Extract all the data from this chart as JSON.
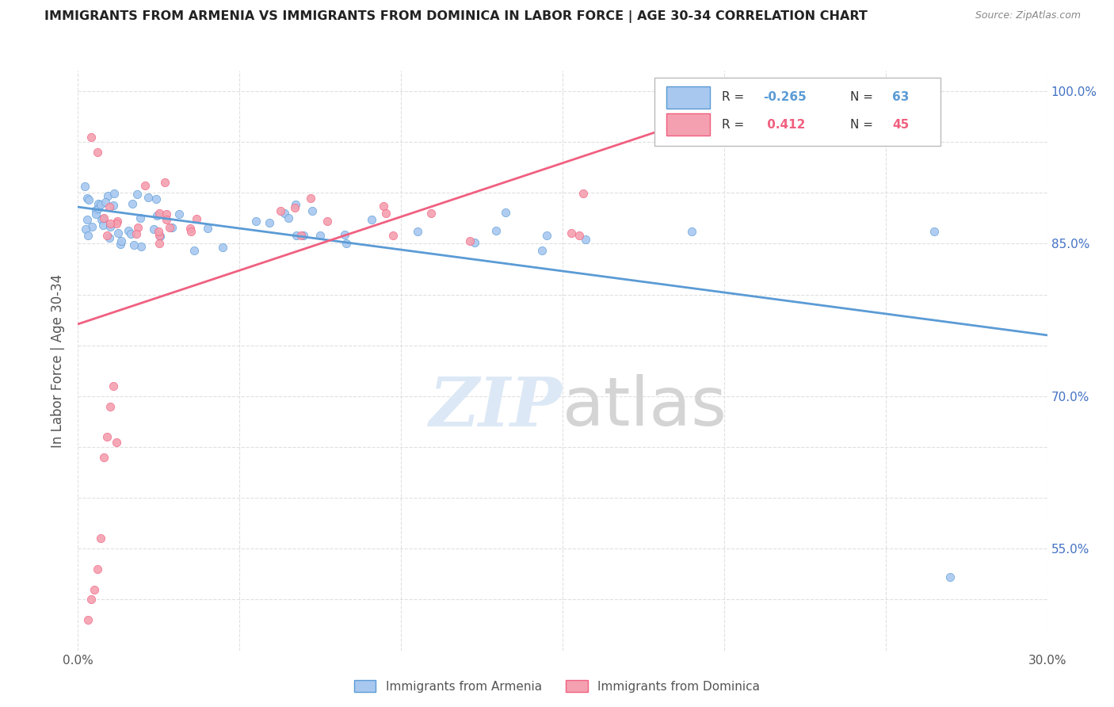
{
  "title": "IMMIGRANTS FROM ARMENIA VS IMMIGRANTS FROM DOMINICA IN LABOR FORCE | AGE 30-34 CORRELATION CHART",
  "source": "Source: ZipAtlas.com",
  "ylabel": "In Labor Force | Age 30-34",
  "xlim": [
    0.0,
    0.3
  ],
  "ylim": [
    0.45,
    1.02
  ],
  "xtick_positions": [
    0.0,
    0.05,
    0.1,
    0.15,
    0.2,
    0.25,
    0.3
  ],
  "xtick_labels": [
    "0.0%",
    "",
    "",
    "",
    "",
    "",
    "30.0%"
  ],
  "ytick_positions": [
    0.5,
    0.55,
    0.6,
    0.65,
    0.7,
    0.75,
    0.8,
    0.85,
    0.9,
    0.95,
    1.0
  ],
  "ytick_labels": [
    "",
    "55.0%",
    "",
    "",
    "70.0%",
    "",
    "",
    "85.0%",
    "",
    "",
    "100.0%"
  ],
  "color_armenia": "#a8c8f0",
  "color_dominica": "#f4a0b0",
  "trendline_armenia": "#5b9bd5",
  "trendline_dominica": "#f06080",
  "background_color": "#ffffff",
  "grid_color": "#e0e0e0",
  "r_armenia": -0.265,
  "n_armenia": 63,
  "r_dominica": 0.412,
  "n_dominica": 45
}
